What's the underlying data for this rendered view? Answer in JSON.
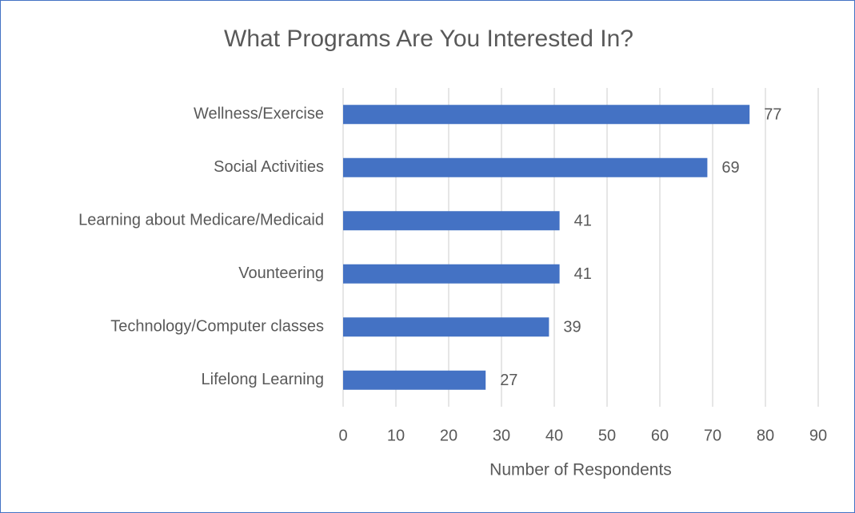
{
  "chart_data": {
    "type": "bar",
    "orientation": "horizontal",
    "title": "What Programs Are You Interested In?",
    "x_label": "Number of Respondents",
    "categories": [
      "Wellness/Exercise",
      "Social Activities",
      "Learning about Medicare/Medicaid",
      "Vounteering",
      "Technology/Computer classes",
      "Lifelong Learning"
    ],
    "values": [
      77,
      69,
      41,
      41,
      39,
      27
    ],
    "color": "#4472c4",
    "xlim": [
      0,
      90
    ],
    "xticks": [
      0,
      10,
      20,
      30,
      40,
      50,
      60,
      70,
      80,
      90
    ],
    "grid": true
  }
}
